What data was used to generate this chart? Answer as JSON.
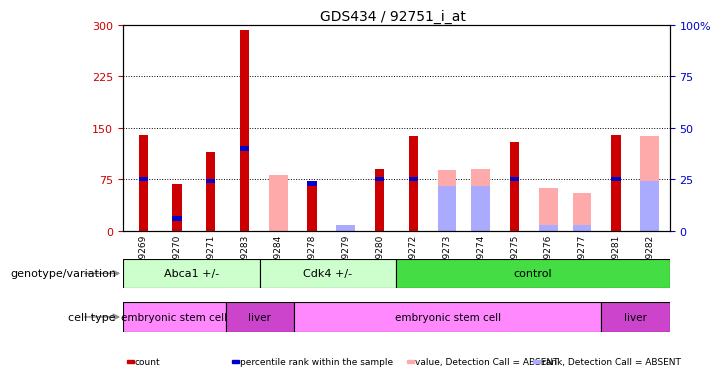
{
  "title": "GDS434 / 92751_i_at",
  "samples": [
    "GSM9269",
    "GSM9270",
    "GSM9271",
    "GSM9283",
    "GSM9284",
    "GSM9278",
    "GSM9279",
    "GSM9280",
    "GSM9272",
    "GSM9273",
    "GSM9274",
    "GSM9275",
    "GSM9276",
    "GSM9277",
    "GSM9281",
    "GSM9282"
  ],
  "count_values": [
    140,
    68,
    115,
    293,
    0,
    68,
    0,
    90,
    138,
    0,
    0,
    130,
    0,
    0,
    140,
    0
  ],
  "rank_pct": [
    25,
    6,
    24,
    40,
    0,
    23,
    0,
    25,
    25,
    0,
    0,
    25,
    0,
    0,
    25,
    0
  ],
  "absent_count": [
    0,
    0,
    0,
    0,
    82,
    0,
    0,
    0,
    0,
    88,
    90,
    0,
    62,
    55,
    0,
    138
  ],
  "absent_rank_pct": [
    0,
    0,
    0,
    0,
    0,
    0,
    3,
    0,
    0,
    22,
    22,
    0,
    3,
    3,
    0,
    24
  ],
  "ylim_left": [
    0,
    300
  ],
  "ylim_right": [
    0,
    100
  ],
  "yticks_left": [
    0,
    75,
    150,
    225,
    300
  ],
  "yticks_right": [
    0,
    25,
    50,
    75,
    100
  ],
  "hlines": [
    75,
    150,
    225
  ],
  "count_color": "#cc0000",
  "rank_color": "#0000cc",
  "absent_count_color": "#ffaaaa",
  "absent_rank_color": "#aaaaff",
  "bg_color": "#ffffff",
  "geno_groups": [
    {
      "label": "Abca1 +/-",
      "start": 0,
      "end": 4,
      "color": "#ccffcc"
    },
    {
      "label": "Cdk4 +/-",
      "start": 4,
      "end": 8,
      "color": "#ccffcc"
    },
    {
      "label": "control",
      "start": 8,
      "end": 16,
      "color": "#44dd44"
    }
  ],
  "cell_groups": [
    {
      "label": "embryonic stem cell",
      "start": 0,
      "end": 3,
      "color": "#ff88ff"
    },
    {
      "label": "liver",
      "start": 3,
      "end": 5,
      "color": "#cc44cc"
    },
    {
      "label": "embryonic stem cell",
      "start": 5,
      "end": 14,
      "color": "#ff88ff"
    },
    {
      "label": "liver",
      "start": 14,
      "end": 16,
      "color": "#cc44cc"
    }
  ],
  "legend_items": [
    {
      "color": "#cc0000",
      "label": "count"
    },
    {
      "color": "#0000cc",
      "label": "percentile rank within the sample"
    },
    {
      "color": "#ffaaaa",
      "label": "value, Detection Call = ABSENT"
    },
    {
      "color": "#aaaaff",
      "label": "rank, Detection Call = ABSENT"
    }
  ],
  "genotype_label": "genotype/variation",
  "celltype_label": "cell type"
}
